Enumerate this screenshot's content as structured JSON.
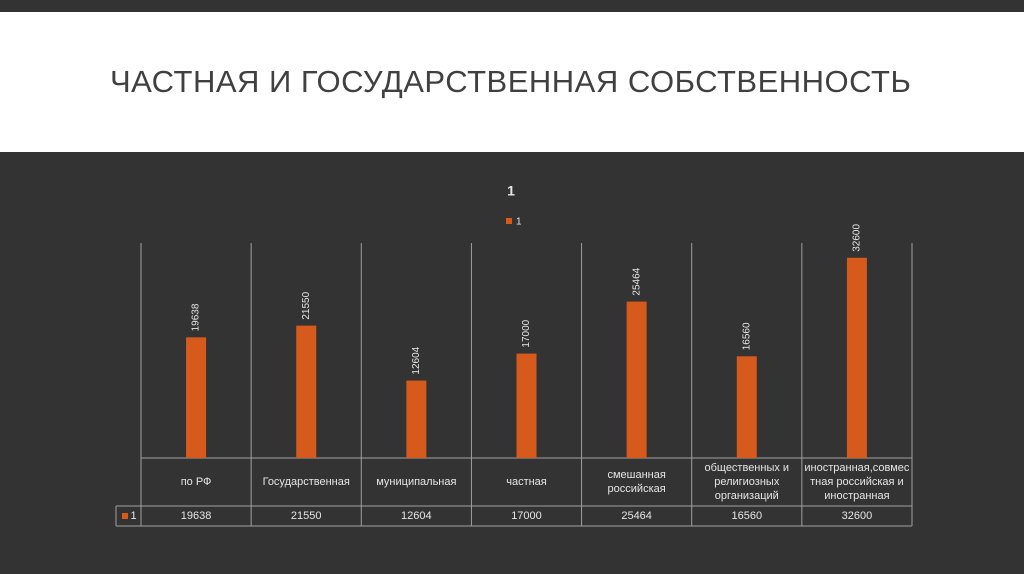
{
  "header": {
    "title": "ЧАСТНАЯ И ГОСУДАРСТВЕННАЯ СОБСТВЕННОСТЬ"
  },
  "chart_data": {
    "type": "bar",
    "title": "1",
    "categories": [
      "по РФ",
      "Государственная",
      "муниципальная",
      "частная",
      "смешанная российская",
      "общественных и религиозных организаций",
      "иностранная,совместная российская и иностранная"
    ],
    "series": [
      {
        "name": "1",
        "color": "#d65a1c",
        "values": [
          19638,
          21550,
          12604,
          17000,
          25464,
          16560,
          32600
        ]
      }
    ],
    "ylim": [
      0,
      35000
    ],
    "legend": "top",
    "data_table": true
  }
}
